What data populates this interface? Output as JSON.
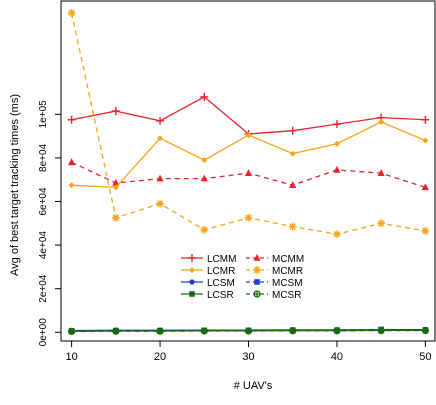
{
  "chart_data": {
    "type": "line",
    "xlabel": "# UAV's",
    "ylabel": "Avg of best target tracking times (ms)",
    "x": [
      10,
      15,
      20,
      25,
      30,
      35,
      40,
      45,
      50
    ],
    "xlim": [
      8.8,
      51.2
    ],
    "ylim": [
      -4000,
      152000
    ],
    "x_ticks": [
      10,
      20,
      30,
      40,
      50
    ],
    "x_tick_labels": [
      "10",
      "20",
      "30",
      "40",
      "50"
    ],
    "y_ticks": [
      0,
      20000,
      40000,
      60000,
      80000,
      100000
    ],
    "y_tick_labels": [
      "0e+00",
      "2e+04",
      "4e+04",
      "6e+04",
      "8e+04",
      "1e+05"
    ],
    "grid": false,
    "legend_position": "bottom-center",
    "series": [
      {
        "name": "LCMM",
        "color": "#e8232b",
        "dash": "solid",
        "marker": "plus",
        "values": [
          97500,
          101500,
          97000,
          108000,
          91000,
          92500,
          95500,
          98500,
          97500
        ]
      },
      {
        "name": "MCMM",
        "color": "#e8232b",
        "dash": "dashed",
        "marker": "triangle",
        "values": [
          78000,
          68500,
          70500,
          70500,
          73000,
          67500,
          74500,
          73000,
          66500
        ]
      },
      {
        "name": "LCMR",
        "color": "#f5a516",
        "dash": "solid",
        "marker": "diamond",
        "values": [
          67500,
          66500,
          89000,
          79000,
          90500,
          82000,
          86500,
          96500,
          88000
        ]
      },
      {
        "name": "MCMR",
        "color": "#f5a516",
        "dash": "dashed",
        "marker": "asterisk",
        "values": [
          146500,
          52500,
          59000,
          47000,
          52500,
          48500,
          45000,
          50000,
          46500
        ]
      },
      {
        "name": "LCSM",
        "color": "#1f3bd6",
        "dash": "solid",
        "marker": "circle",
        "values": [
          800,
          900,
          900,
          1000,
          1000,
          1100,
          1100,
          1200,
          1200
        ]
      },
      {
        "name": "MCSM",
        "color": "#1f3bd6",
        "dash": "dashed",
        "marker": "square",
        "values": [
          700,
          800,
          800,
          900,
          900,
          1000,
          1000,
          1300,
          1100
        ]
      },
      {
        "name": "LCSR",
        "color": "#1a6b14",
        "dash": "solid",
        "marker": "square",
        "values": [
          500,
          600,
          600,
          700,
          700,
          800,
          800,
          900,
          900
        ]
      },
      {
        "name": "MCSR",
        "color": "#1a6b14",
        "dash": "dashed",
        "marker": "circle-plus",
        "values": [
          400,
          500,
          500,
          600,
          600,
          700,
          700,
          800,
          800
        ]
      }
    ],
    "legend_order": [
      "LCMM",
      "MCMM",
      "LCMR",
      "MCMR",
      "LCSM",
      "MCSM",
      "LCSR",
      "MCSR"
    ]
  }
}
